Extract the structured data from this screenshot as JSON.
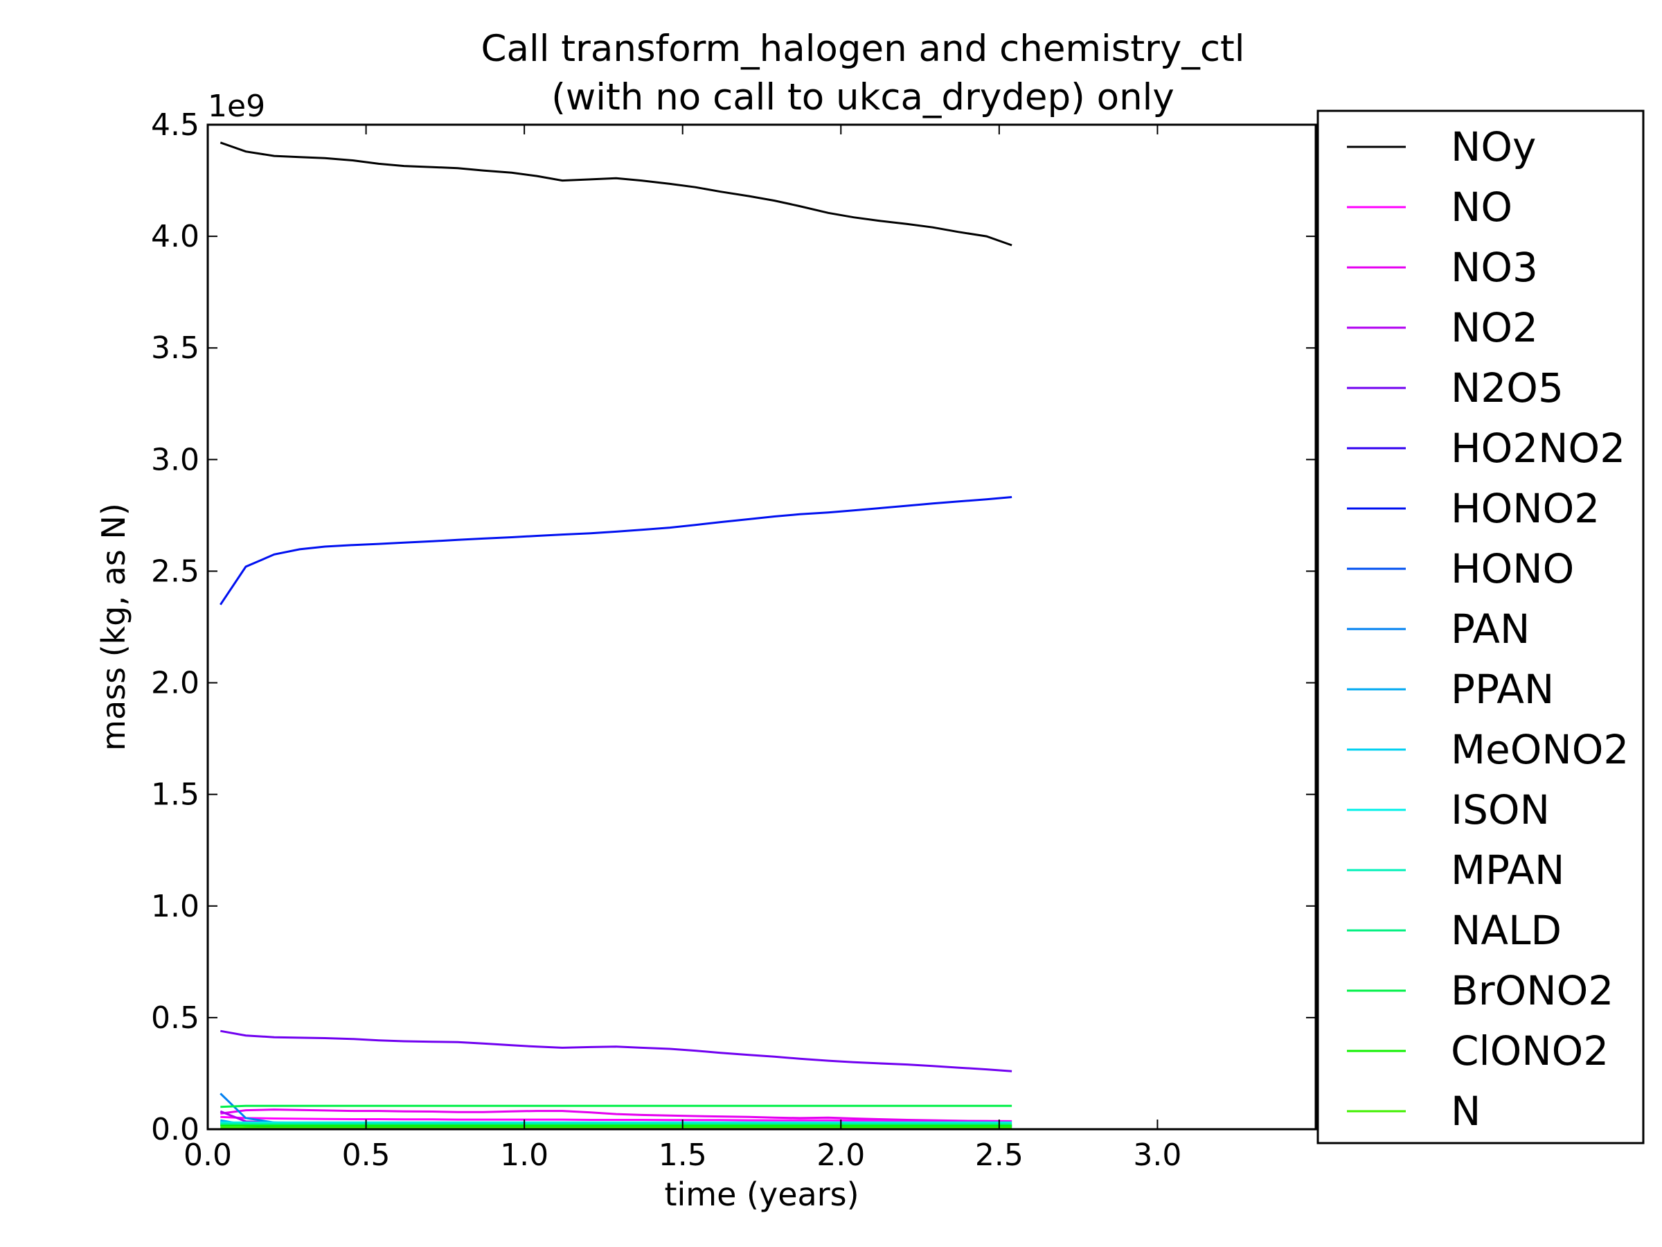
{
  "chart_data": {
    "type": "line",
    "title": [
      "Call transform_halogen and chemistry_ctl",
      "(with no call to ukca_drydep) only"
    ],
    "xlabel": "time (years)",
    "ylabel": "mass (kg, as N)",
    "y_offset_label": "1e9",
    "xlim": [
      0.0,
      3.5
    ],
    "ylim": [
      0.0,
      4.5
    ],
    "x_unit_scale": 1000000000.0,
    "x_ticks": [
      0.0,
      0.5,
      1.0,
      1.5,
      2.0,
      2.5,
      3.0
    ],
    "x_tick_labels": [
      "0.0",
      "0.5",
      "1.0",
      "1.5",
      "2.0",
      "2.5",
      "3.0"
    ],
    "y_ticks": [
      0.0,
      0.5,
      1.0,
      1.5,
      2.0,
      2.5,
      3.0,
      3.5,
      4.0,
      4.5
    ],
    "y_tick_labels": [
      "0.0",
      "0.5",
      "1.0",
      "1.5",
      "2.0",
      "2.5",
      "3.0",
      "3.5",
      "4.0",
      "4.5"
    ],
    "grid": false,
    "legend_position": "right",
    "x": [
      0.04,
      0.12,
      0.21,
      0.29,
      0.37,
      0.46,
      0.54,
      0.62,
      0.71,
      0.79,
      0.87,
      0.96,
      1.04,
      1.12,
      1.21,
      1.29,
      1.37,
      1.46,
      1.54,
      1.62,
      1.71,
      1.79,
      1.87,
      1.96,
      2.04,
      2.12,
      2.21,
      2.29,
      2.37,
      2.46,
      2.54
    ],
    "series": [
      {
        "name": "NOy",
        "color": "#000000",
        "values": [
          4.42,
          4.38,
          4.36,
          4.355,
          4.35,
          4.34,
          4.325,
          4.315,
          4.31,
          4.305,
          4.295,
          4.285,
          4.27,
          4.25,
          4.255,
          4.26,
          4.25,
          4.235,
          4.22,
          4.2,
          4.18,
          4.16,
          4.135,
          4.105,
          4.085,
          4.07,
          4.055,
          4.04,
          4.02,
          4.0,
          3.96
        ]
      },
      {
        "name": "NO",
        "color": "#ff00ff",
        "values": [
          0.055,
          0.05,
          0.048,
          0.047,
          0.046,
          0.045,
          0.045,
          0.044,
          0.044,
          0.043,
          0.043,
          0.043,
          0.043,
          0.043,
          0.042,
          0.042,
          0.042,
          0.041,
          0.041,
          0.041,
          0.04,
          0.04,
          0.04,
          0.04,
          0.039,
          0.039,
          0.038,
          0.038,
          0.037,
          0.037,
          0.036
        ]
      },
      {
        "name": "NO3",
        "color": "#e400f0",
        "values": [
          0.07,
          0.085,
          0.088,
          0.086,
          0.084,
          0.082,
          0.082,
          0.08,
          0.079,
          0.077,
          0.077,
          0.08,
          0.082,
          0.082,
          0.075,
          0.068,
          0.064,
          0.061,
          0.059,
          0.057,
          0.055,
          0.052,
          0.05,
          0.052,
          0.048,
          0.045,
          0.042,
          0.04,
          0.038,
          0.036,
          0.034
        ]
      },
      {
        "name": "NO2",
        "color": "#b000f0",
        "values": [
          0.08,
          0.035,
          0.03,
          0.029,
          0.028,
          0.028,
          0.027,
          0.027,
          0.027,
          0.026,
          0.026,
          0.026,
          0.026,
          0.026,
          0.025,
          0.025,
          0.025,
          0.025,
          0.024,
          0.024,
          0.024,
          0.024,
          0.023,
          0.023,
          0.023,
          0.023,
          0.022,
          0.022,
          0.022,
          0.021,
          0.021
        ]
      },
      {
        "name": "N2O5",
        "color": "#7000f0",
        "values": [
          0.44,
          0.42,
          0.412,
          0.41,
          0.408,
          0.404,
          0.398,
          0.394,
          0.392,
          0.39,
          0.384,
          0.376,
          0.37,
          0.365,
          0.368,
          0.37,
          0.365,
          0.36,
          0.352,
          0.342,
          0.333,
          0.325,
          0.316,
          0.307,
          0.3,
          0.295,
          0.29,
          0.283,
          0.276,
          0.268,
          0.26
        ]
      },
      {
        "name": "HO2NO2",
        "color": "#3000f0",
        "values": [
          0.03,
          0.022,
          0.02,
          0.019,
          0.019,
          0.019,
          0.018,
          0.018,
          0.018,
          0.018,
          0.018,
          0.017,
          0.017,
          0.017,
          0.017,
          0.017,
          0.017,
          0.016,
          0.016,
          0.016,
          0.016,
          0.016,
          0.015,
          0.015,
          0.015,
          0.015,
          0.015,
          0.015,
          0.014,
          0.014,
          0.014
        ]
      },
      {
        "name": "HONO2",
        "color": "#0010f0",
        "values": [
          2.35,
          2.52,
          2.575,
          2.598,
          2.61,
          2.617,
          2.622,
          2.628,
          2.634,
          2.64,
          2.646,
          2.652,
          2.658,
          2.664,
          2.67,
          2.677,
          2.685,
          2.695,
          2.707,
          2.72,
          2.733,
          2.745,
          2.755,
          2.763,
          2.772,
          2.782,
          2.793,
          2.803,
          2.812,
          2.822,
          2.832
        ]
      },
      {
        "name": "HONO",
        "color": "#0050f0",
        "values": [
          0.02,
          0.015,
          0.013,
          0.012,
          0.012,
          0.012,
          0.011,
          0.011,
          0.011,
          0.011,
          0.011,
          0.011,
          0.01,
          0.01,
          0.01,
          0.01,
          0.01,
          0.01,
          0.01,
          0.01,
          0.01,
          0.01,
          0.009,
          0.009,
          0.009,
          0.009,
          0.009,
          0.009,
          0.009,
          0.009,
          0.009
        ]
      },
      {
        "name": "PAN",
        "color": "#0080f0",
        "values": [
          0.16,
          0.05,
          0.03,
          0.025,
          0.024,
          0.023,
          0.023,
          0.022,
          0.022,
          0.022,
          0.021,
          0.021,
          0.021,
          0.021,
          0.02,
          0.02,
          0.02,
          0.02,
          0.02,
          0.019,
          0.019,
          0.019,
          0.019,
          0.019,
          0.018,
          0.018,
          0.018,
          0.018,
          0.018,
          0.017,
          0.017
        ]
      },
      {
        "name": "PPAN",
        "color": "#00a8f0",
        "values": [
          0.04,
          0.02,
          0.015,
          0.014,
          0.013,
          0.013,
          0.013,
          0.012,
          0.012,
          0.012,
          0.012,
          0.012,
          0.012,
          0.011,
          0.011,
          0.011,
          0.011,
          0.011,
          0.011,
          0.011,
          0.011,
          0.01,
          0.01,
          0.01,
          0.01,
          0.01,
          0.01,
          0.01,
          0.01,
          0.01,
          0.01
        ]
      },
      {
        "name": "MeONO2",
        "color": "#00d0f0",
        "values": [
          0.02,
          0.018,
          0.017,
          0.017,
          0.017,
          0.017,
          0.016,
          0.016,
          0.016,
          0.016,
          0.016,
          0.016,
          0.016,
          0.016,
          0.016,
          0.015,
          0.015,
          0.015,
          0.015,
          0.015,
          0.015,
          0.015,
          0.015,
          0.015,
          0.015,
          0.015,
          0.014,
          0.014,
          0.014,
          0.014,
          0.014
        ]
      },
      {
        "name": "ISON",
        "color": "#00f0e8",
        "values": [
          0.03,
          0.03,
          0.03,
          0.03,
          0.03,
          0.03,
          0.03,
          0.03,
          0.03,
          0.03,
          0.03,
          0.03,
          0.03,
          0.03,
          0.03,
          0.03,
          0.03,
          0.03,
          0.03,
          0.03,
          0.03,
          0.03,
          0.03,
          0.03,
          0.03,
          0.03,
          0.03,
          0.03,
          0.03,
          0.03,
          0.03
        ]
      },
      {
        "name": "MPAN",
        "color": "#00f0b8",
        "values": [
          0.025,
          0.024,
          0.024,
          0.024,
          0.024,
          0.024,
          0.024,
          0.024,
          0.024,
          0.024,
          0.024,
          0.024,
          0.024,
          0.024,
          0.024,
          0.024,
          0.024,
          0.024,
          0.024,
          0.024,
          0.024,
          0.024,
          0.024,
          0.024,
          0.024,
          0.024,
          0.024,
          0.024,
          0.024,
          0.024,
          0.024
        ]
      },
      {
        "name": "NALD",
        "color": "#00f080",
        "values": [
          0.02,
          0.02,
          0.02,
          0.02,
          0.02,
          0.02,
          0.02,
          0.02,
          0.02,
          0.02,
          0.02,
          0.02,
          0.02,
          0.02,
          0.02,
          0.02,
          0.02,
          0.02,
          0.02,
          0.02,
          0.02,
          0.02,
          0.02,
          0.02,
          0.02,
          0.02,
          0.02,
          0.02,
          0.02,
          0.02,
          0.02
        ]
      },
      {
        "name": "BrONO2",
        "color": "#00f048",
        "values": [
          0.1,
          0.105,
          0.105,
          0.105,
          0.105,
          0.105,
          0.105,
          0.105,
          0.105,
          0.105,
          0.105,
          0.105,
          0.105,
          0.105,
          0.105,
          0.105,
          0.105,
          0.105,
          0.105,
          0.105,
          0.105,
          0.105,
          0.105,
          0.105,
          0.105,
          0.105,
          0.105,
          0.105,
          0.105,
          0.105,
          0.105
        ]
      },
      {
        "name": "ClONO2",
        "color": "#10f000",
        "values": [
          0.015,
          0.015,
          0.015,
          0.015,
          0.015,
          0.015,
          0.015,
          0.015,
          0.015,
          0.015,
          0.015,
          0.015,
          0.015,
          0.015,
          0.015,
          0.015,
          0.015,
          0.015,
          0.015,
          0.015,
          0.015,
          0.015,
          0.015,
          0.015,
          0.015,
          0.015,
          0.015,
          0.015,
          0.015,
          0.015,
          0.015
        ]
      },
      {
        "name": "N",
        "color": "#40f000",
        "values": [
          0.005,
          0.005,
          0.005,
          0.005,
          0.005,
          0.005,
          0.005,
          0.005,
          0.005,
          0.005,
          0.005,
          0.005,
          0.005,
          0.005,
          0.005,
          0.005,
          0.005,
          0.005,
          0.005,
          0.005,
          0.005,
          0.005,
          0.005,
          0.005,
          0.005,
          0.005,
          0.005,
          0.005,
          0.005,
          0.005,
          0.005
        ]
      }
    ]
  }
}
